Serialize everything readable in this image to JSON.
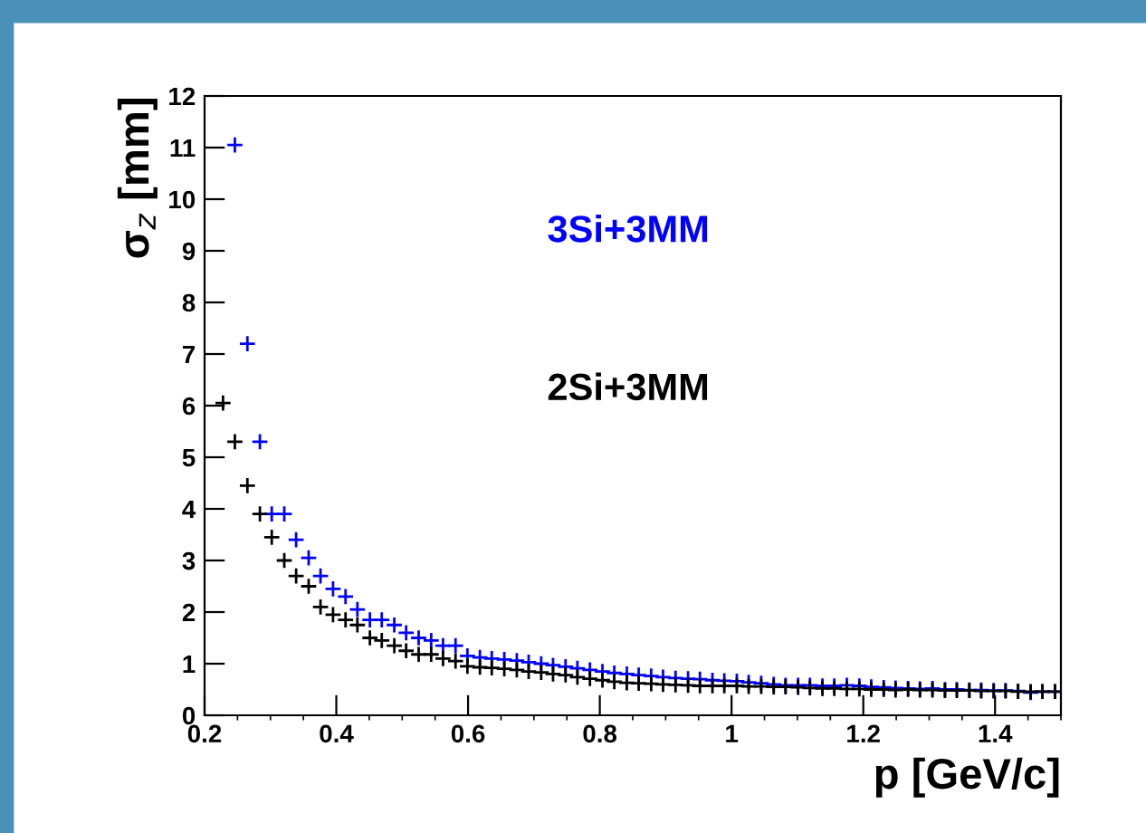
{
  "chart_data": {
    "type": "scatter",
    "xlabel": "p [GeV/c]",
    "ylabel": "σ$_{z}$ [mm]",
    "xlim": [
      0.2,
      1.5
    ],
    "ylim": [
      0,
      12
    ],
    "xticks": [
      0.2,
      0.4,
      0.6,
      0.8,
      1,
      1.2,
      1.4
    ],
    "yticks": [
      0,
      1,
      2,
      3,
      4,
      5,
      6,
      7,
      8,
      9,
      10,
      11,
      12
    ],
    "grid": false,
    "legend": false,
    "marker": "cross",
    "series": [
      {
        "name": "3Si+3MM",
        "color": "#0000ff",
        "x": [
          0.246,
          0.265,
          0.284,
          0.302,
          0.321,
          0.339,
          0.358,
          0.376,
          0.395,
          0.414,
          0.432,
          0.451,
          0.469,
          0.488,
          0.506,
          0.525,
          0.544,
          0.562,
          0.581,
          0.599,
          0.618,
          0.636,
          0.655,
          0.674,
          0.692,
          0.711,
          0.729,
          0.748,
          0.766,
          0.785,
          0.804,
          0.822,
          0.841,
          0.859,
          0.878,
          0.896,
          0.915,
          0.934,
          0.952,
          0.971,
          0.989,
          1.008,
          1.026,
          1.045,
          1.064,
          1.082,
          1.101,
          1.119,
          1.138,
          1.156,
          1.175,
          1.194,
          1.212,
          1.231,
          1.249,
          1.268,
          1.286,
          1.305,
          1.324,
          1.342,
          1.361,
          1.379,
          1.398,
          1.416,
          1.435,
          1.454,
          1.472,
          1.491
        ],
        "values": [
          11.05,
          7.2,
          5.3,
          3.9,
          3.9,
          3.4,
          3.05,
          2.7,
          2.45,
          2.3,
          2.05,
          1.85,
          1.85,
          1.75,
          1.6,
          1.5,
          1.45,
          1.35,
          1.35,
          1.15,
          1.12,
          1.1,
          1.08,
          1.06,
          1.03,
          1.0,
          0.97,
          0.94,
          0.91,
          0.88,
          0.85,
          0.82,
          0.8,
          0.78,
          0.76,
          0.74,
          0.72,
          0.71,
          0.7,
          0.68,
          0.67,
          0.66,
          0.64,
          0.62,
          0.6,
          0.58,
          0.58,
          0.58,
          0.57,
          0.57,
          0.58,
          0.57,
          0.55,
          0.54,
          0.53,
          0.52,
          0.51,
          0.52,
          0.5,
          0.5,
          0.49,
          0.49,
          0.48,
          0.48,
          0.47,
          0.44,
          0.46,
          0.46
        ]
      },
      {
        "name": "2Si+3MM",
        "color": "#000000",
        "x": [
          0.228,
          0.246,
          0.265,
          0.284,
          0.302,
          0.321,
          0.339,
          0.358,
          0.376,
          0.395,
          0.414,
          0.432,
          0.451,
          0.469,
          0.488,
          0.506,
          0.525,
          0.544,
          0.562,
          0.581,
          0.599,
          0.618,
          0.636,
          0.655,
          0.674,
          0.692,
          0.711,
          0.729,
          0.748,
          0.766,
          0.785,
          0.804,
          0.822,
          0.841,
          0.859,
          0.878,
          0.896,
          0.915,
          0.934,
          0.952,
          0.971,
          0.989,
          1.008,
          1.026,
          1.045,
          1.064,
          1.082,
          1.101,
          1.119,
          1.138,
          1.156,
          1.175,
          1.194,
          1.212,
          1.231,
          1.249,
          1.268,
          1.286,
          1.305,
          1.324,
          1.342,
          1.361,
          1.379,
          1.398,
          1.416,
          1.435,
          1.454,
          1.472,
          1.491
        ],
        "values": [
          6.05,
          5.3,
          4.45,
          3.9,
          3.45,
          3.0,
          2.7,
          2.5,
          2.1,
          1.95,
          1.85,
          1.75,
          1.5,
          1.45,
          1.35,
          1.25,
          1.18,
          1.18,
          1.1,
          1.05,
          0.95,
          0.93,
          0.92,
          0.9,
          0.88,
          0.85,
          0.83,
          0.8,
          0.78,
          0.74,
          0.71,
          0.68,
          0.65,
          0.63,
          0.62,
          0.61,
          0.6,
          0.59,
          0.58,
          0.57,
          0.57,
          0.57,
          0.57,
          0.56,
          0.56,
          0.55,
          0.55,
          0.54,
          0.53,
          0.52,
          0.52,
          0.51,
          0.51,
          0.5,
          0.5,
          0.49,
          0.5,
          0.49,
          0.49,
          0.48,
          0.48,
          0.48,
          0.47,
          0.47,
          0.47,
          0.46,
          0.46,
          0.46,
          0.46
        ]
      }
    ]
  }
}
